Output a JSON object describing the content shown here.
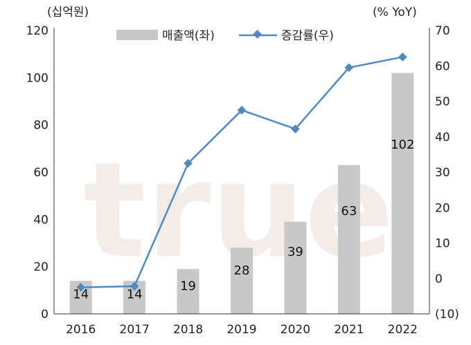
{
  "chart_data": {
    "type": "bar",
    "watermark": "true",
    "left_unit": "(십억원)",
    "right_unit": "(% YoY)",
    "categories": [
      "2016",
      "2017",
      "2018",
      "2019",
      "2020",
      "2021",
      "2022"
    ],
    "series": [
      {
        "name": "매출액(좌)",
        "type": "bar",
        "axis": "left",
        "values": [
          14,
          14,
          19,
          28,
          39,
          63,
          102
        ],
        "labels": [
          "14",
          "14",
          "19",
          "28",
          "39",
          "63",
          "102"
        ],
        "color": "#c8c8c8"
      },
      {
        "name": "증감률(우)",
        "type": "line",
        "axis": "right",
        "values": [
          -2.5,
          -2.2,
          32.5,
          47.5,
          42.2,
          59.5,
          62.5
        ],
        "color": "#4f89c2"
      }
    ],
    "ylim_left": [
      0,
      120
    ],
    "yticks_left": [
      "0",
      "20",
      "40",
      "60",
      "80",
      "100",
      "120"
    ],
    "ylim_right": [
      -10,
      70
    ],
    "yticks_right": [
      "(10)",
      "0",
      "10",
      "20",
      "30",
      "40",
      "50",
      "60",
      "70"
    ],
    "legend_position": "top",
    "grid": false
  }
}
